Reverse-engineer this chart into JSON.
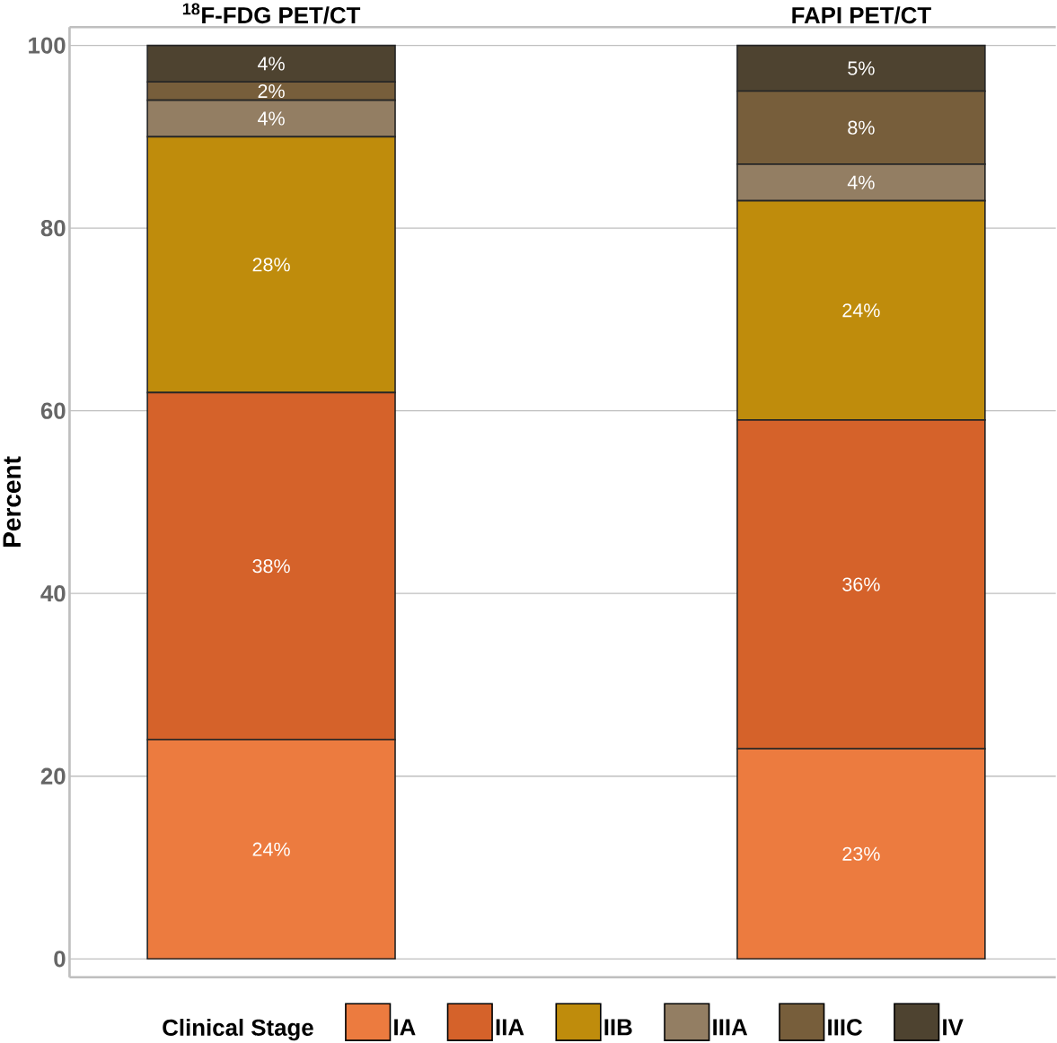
{
  "chart_data": {
    "type": "bar",
    "stacked": true,
    "categories": [
      "$^{18}$F-FDG PET/CT",
      "FAPI PET/CT"
    ],
    "ylabel": "Percent",
    "ylim": [
      -2,
      102
    ],
    "yticks": [
      0,
      20,
      40,
      60,
      80,
      100
    ],
    "grid": "y",
    "legend": "bottom",
    "legend_title": "Clinical Stage",
    "series": [
      {
        "name": "IA",
        "color": "#ec7b3f",
        "values": [
          24,
          23
        ],
        "value_labels": [
          "24%",
          "23%"
        ]
      },
      {
        "name": "IIA",
        "color": "#d5622a",
        "values": [
          38,
          36
        ],
        "value_labels": [
          "38%",
          "36%"
        ]
      },
      {
        "name": "IIB",
        "color": "#bf8c0c",
        "values": [
          28,
          24
        ],
        "value_labels": [
          "28%",
          "24%"
        ]
      },
      {
        "name": "IIIA",
        "color": "#937e63",
        "values": [
          4,
          4
        ],
        "value_labels": [
          "4%",
          "4%"
        ]
      },
      {
        "name": "IIIC",
        "color": "#775e3b",
        "values": [
          2,
          8
        ],
        "value_labels": [
          "2%",
          "8%"
        ]
      },
      {
        "name": "IV",
        "color": "#4e4330",
        "values": [
          4,
          5
        ],
        "value_labels": [
          "4%",
          "5%"
        ]
      }
    ]
  }
}
